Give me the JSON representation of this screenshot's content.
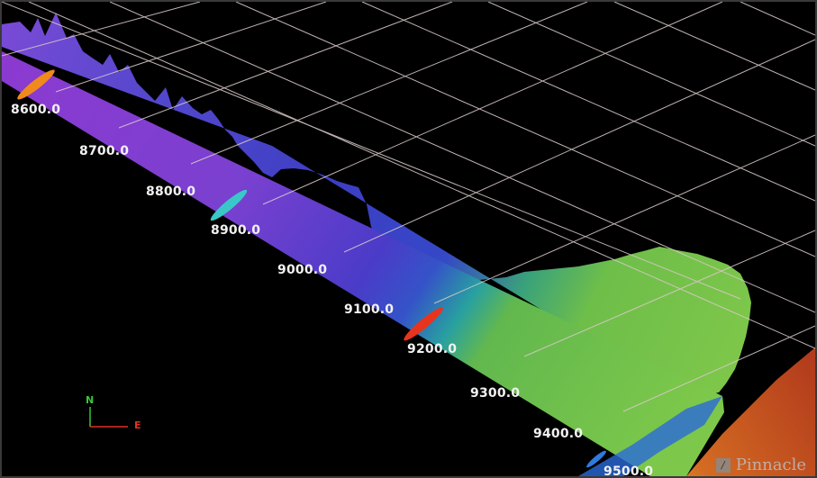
{
  "depth_labels": [
    "8600.0",
    "8700.0",
    "8800.0",
    "8900.0",
    "9000.0",
    "9100.0",
    "9200.0",
    "9300.0",
    "9400.0",
    "9500.0"
  ],
  "axis": {
    "north": "N",
    "east": "E"
  },
  "logo": {
    "text": "Pinnacle",
    "icon": "pinnacle-logo-icon"
  },
  "markers": [
    {
      "name": "orange-event-marker",
      "color": "#f08a1c"
    },
    {
      "name": "cyan-event-marker",
      "color": "#39c8c8"
    },
    {
      "name": "red-event-marker",
      "color": "#e8341c"
    },
    {
      "name": "blue-event-marker",
      "color": "#2e7be0"
    }
  ],
  "colors": {
    "grid": "#d8c8c8",
    "purple": "#8e3fcf",
    "blue": "#3a3fc8",
    "green": "#74c04a",
    "red": "#c0391c"
  }
}
